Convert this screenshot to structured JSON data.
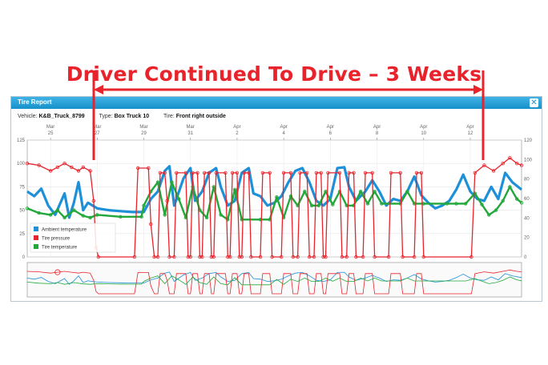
{
  "headline": "Driver Continued To Drive – 3 Weeks",
  "window": {
    "title": "Tire Report",
    "close_icon": "close-icon"
  },
  "info": {
    "vehicle_label": "Vehicle:",
    "vehicle_value": "K&B_Truck_8799",
    "type_label": "Type:",
    "type_value": "Box Truck 10",
    "tire_label": "Tire:",
    "tire_value": "Front right outside"
  },
  "colors": {
    "ambient": "#1e90d8",
    "pressure": "#e8232b",
    "tire_temp": "#22a83a",
    "headline": "#e8232b"
  },
  "chart_data": {
    "type": "line",
    "title": "",
    "xlabel": "",
    "ylabel": "",
    "x_unit": "days since Mar 24",
    "xlim": [
      0,
      21.2
    ],
    "x_ticks": [
      {
        "x": 1,
        "month": "Mar",
        "day": "25"
      },
      {
        "x": 3,
        "month": "Mar",
        "day": "27"
      },
      {
        "x": 5,
        "month": "Mar",
        "day": "29"
      },
      {
        "x": 7,
        "month": "Mar",
        "day": "31"
      },
      {
        "x": 9,
        "month": "Apr",
        "day": "2"
      },
      {
        "x": 11,
        "month": "Apr",
        "day": "4"
      },
      {
        "x": 13,
        "month": "Apr",
        "day": "6"
      },
      {
        "x": 15,
        "month": "Apr",
        "day": "8"
      },
      {
        "x": 17,
        "month": "Apr",
        "day": "10"
      },
      {
        "x": 19,
        "month": "Apr",
        "day": "12"
      }
    ],
    "y_left": {
      "range": [
        0,
        125
      ],
      "ticks": [
        "0",
        "25",
        "50",
        "75",
        "100",
        "125"
      ]
    },
    "y_right": {
      "range": [
        0,
        120
      ],
      "ticks": [
        "0",
        "20",
        "40",
        "60",
        "80",
        "100",
        "120"
      ]
    },
    "legend_position": "bottom-left",
    "grid": true,
    "annotation": {
      "text": "Driver Continued To Drive – 3 Weeks",
      "x_start": 2.75,
      "x_end": 19.4
    },
    "series": [
      {
        "name": "Ambient temperature",
        "axis": "left",
        "points": [
          [
            0,
            70
          ],
          [
            0.3,
            65
          ],
          [
            0.6,
            73
          ],
          [
            0.9,
            55
          ],
          [
            1.2,
            45
          ],
          [
            1.6,
            68
          ],
          [
            1.8,
            42
          ],
          [
            2.0,
            58
          ],
          [
            2.2,
            80
          ],
          [
            2.4,
            50
          ],
          [
            2.6,
            58
          ],
          [
            2.8,
            55
          ],
          [
            3.0,
            52
          ],
          [
            3.5,
            50
          ],
          [
            4.0,
            49
          ],
          [
            4.5,
            48
          ],
          [
            5.0,
            48
          ],
          [
            5.3,
            62
          ],
          [
            5.6,
            70
          ],
          [
            5.9,
            92
          ],
          [
            6.1,
            97
          ],
          [
            6.3,
            55
          ],
          [
            6.7,
            84
          ],
          [
            7.0,
            95
          ],
          [
            7.2,
            60
          ],
          [
            7.5,
            70
          ],
          [
            7.8,
            90
          ],
          [
            8.1,
            95
          ],
          [
            8.3,
            75
          ],
          [
            8.6,
            55
          ],
          [
            8.9,
            60
          ],
          [
            9.2,
            90
          ],
          [
            9.5,
            95
          ],
          [
            9.7,
            68
          ],
          [
            10.0,
            65
          ],
          [
            10.3,
            55
          ],
          [
            10.6,
            58
          ],
          [
            10.9,
            65
          ],
          [
            11.2,
            80
          ],
          [
            11.5,
            92
          ],
          [
            11.8,
            95
          ],
          [
            12.1,
            80
          ],
          [
            12.4,
            60
          ],
          [
            12.7,
            55
          ],
          [
            13.0,
            62
          ],
          [
            13.3,
            95
          ],
          [
            13.6,
            96
          ],
          [
            13.8,
            75
          ],
          [
            14.1,
            60
          ],
          [
            14.5,
            70
          ],
          [
            14.8,
            82
          ],
          [
            15.1,
            70
          ],
          [
            15.4,
            55
          ],
          [
            15.7,
            62
          ],
          [
            16.0,
            60
          ],
          [
            16.3,
            70
          ],
          [
            16.6,
            86
          ],
          [
            16.9,
            66
          ],
          [
            17.2,
            58
          ],
          [
            17.5,
            52
          ],
          [
            17.8,
            55
          ],
          [
            18.1,
            60
          ],
          [
            18.4,
            72
          ],
          [
            18.7,
            88
          ],
          [
            19.0,
            70
          ],
          [
            19.3,
            62
          ],
          [
            19.6,
            60
          ],
          [
            19.9,
            75
          ],
          [
            20.2,
            62
          ],
          [
            20.5,
            90
          ],
          [
            20.8,
            80
          ],
          [
            21.2,
            72
          ]
        ]
      },
      {
        "name": "Tire pressure",
        "axis": "left",
        "points": [
          [
            0,
            100
          ],
          [
            0.5,
            98
          ],
          [
            1.0,
            92
          ],
          [
            1.3,
            96
          ],
          [
            1.6,
            100
          ],
          [
            1.9,
            96
          ],
          [
            2.2,
            92
          ],
          [
            2.4,
            96
          ],
          [
            2.7,
            92
          ],
          [
            2.85,
            60
          ],
          [
            2.95,
            10
          ],
          [
            3.05,
            0
          ],
          [
            4.6,
            0
          ],
          [
            4.75,
            95
          ],
          [
            5.2,
            95
          ],
          [
            5.3,
            35
          ],
          [
            5.45,
            0
          ],
          [
            5.6,
            0
          ],
          [
            5.7,
            90
          ],
          [
            5.9,
            90
          ],
          [
            6.0,
            60
          ],
          [
            6.1,
            0
          ],
          [
            6.3,
            0
          ],
          [
            6.4,
            90
          ],
          [
            6.8,
            90
          ],
          [
            6.9,
            0
          ],
          [
            7.0,
            0
          ],
          [
            7.1,
            90
          ],
          [
            7.3,
            90
          ],
          [
            7.4,
            0
          ],
          [
            7.5,
            0
          ],
          [
            7.6,
            90
          ],
          [
            7.8,
            90
          ],
          [
            7.9,
            0
          ],
          [
            8.0,
            0
          ],
          [
            8.1,
            90
          ],
          [
            8.5,
            90
          ],
          [
            8.6,
            0
          ],
          [
            8.7,
            0
          ],
          [
            8.8,
            90
          ],
          [
            9.0,
            90
          ],
          [
            9.1,
            0
          ],
          [
            9.2,
            0
          ],
          [
            9.3,
            90
          ],
          [
            9.5,
            90
          ],
          [
            9.6,
            0
          ],
          [
            10.0,
            0
          ],
          [
            10.1,
            90
          ],
          [
            10.4,
            90
          ],
          [
            10.5,
            0
          ],
          [
            10.9,
            0
          ],
          [
            11.0,
            90
          ],
          [
            11.3,
            90
          ],
          [
            11.4,
            0
          ],
          [
            11.6,
            0
          ],
          [
            11.7,
            90
          ],
          [
            12.0,
            90
          ],
          [
            12.1,
            0
          ],
          [
            12.3,
            0
          ],
          [
            12.4,
            90
          ],
          [
            12.6,
            90
          ],
          [
            12.7,
            0
          ],
          [
            12.8,
            0
          ],
          [
            12.9,
            90
          ],
          [
            13.4,
            90
          ],
          [
            13.5,
            0
          ],
          [
            13.7,
            0
          ],
          [
            13.8,
            90
          ],
          [
            14.0,
            90
          ],
          [
            14.1,
            0
          ],
          [
            14.4,
            0
          ],
          [
            14.5,
            90
          ],
          [
            14.8,
            90
          ],
          [
            14.9,
            0
          ],
          [
            15.5,
            0
          ],
          [
            15.6,
            90
          ],
          [
            16.0,
            90
          ],
          [
            16.1,
            0
          ],
          [
            16.6,
            0
          ],
          [
            16.7,
            90
          ],
          [
            16.9,
            90
          ],
          [
            17.0,
            0
          ],
          [
            19.05,
            0
          ],
          [
            19.2,
            90
          ],
          [
            19.6,
            98
          ],
          [
            20.0,
            92
          ],
          [
            20.4,
            100
          ],
          [
            20.7,
            106
          ],
          [
            21.0,
            100
          ],
          [
            21.2,
            98
          ]
        ]
      },
      {
        "name": "Tire temperature",
        "axis": "left",
        "points": [
          [
            0,
            52
          ],
          [
            0.5,
            47
          ],
          [
            1.0,
            45
          ],
          [
            1.3,
            50
          ],
          [
            1.6,
            42
          ],
          [
            2.0,
            50
          ],
          [
            2.4,
            44
          ],
          [
            2.7,
            42
          ],
          [
            3.0,
            45
          ],
          [
            4.0,
            43
          ],
          [
            4.9,
            43
          ],
          [
            5.0,
            55
          ],
          [
            5.3,
            70
          ],
          [
            5.6,
            80
          ],
          [
            5.9,
            45
          ],
          [
            6.2,
            80
          ],
          [
            6.5,
            62
          ],
          [
            6.8,
            42
          ],
          [
            7.1,
            75
          ],
          [
            7.4,
            50
          ],
          [
            7.7,
            42
          ],
          [
            8.0,
            75
          ],
          [
            8.3,
            45
          ],
          [
            8.6,
            40
          ],
          [
            8.9,
            72
          ],
          [
            9.2,
            40
          ],
          [
            10.0,
            40
          ],
          [
            10.4,
            40
          ],
          [
            10.7,
            64
          ],
          [
            11.0,
            42
          ],
          [
            11.3,
            65
          ],
          [
            11.6,
            55
          ],
          [
            11.9,
            70
          ],
          [
            12.2,
            55
          ],
          [
            12.5,
            55
          ],
          [
            12.8,
            70
          ],
          [
            13.1,
            56
          ],
          [
            13.4,
            70
          ],
          [
            13.7,
            55
          ],
          [
            14.0,
            55
          ],
          [
            14.3,
            70
          ],
          [
            14.6,
            57
          ],
          [
            14.9,
            70
          ],
          [
            15.2,
            57
          ],
          [
            16.0,
            57
          ],
          [
            16.3,
            70
          ],
          [
            16.6,
            57
          ],
          [
            17.0,
            57
          ],
          [
            18.0,
            57
          ],
          [
            18.4,
            57
          ],
          [
            18.8,
            57
          ],
          [
            19.2,
            68
          ],
          [
            19.5,
            56
          ],
          [
            19.8,
            45
          ],
          [
            20.1,
            50
          ],
          [
            20.4,
            60
          ],
          [
            20.7,
            75
          ],
          [
            21.0,
            62
          ],
          [
            21.2,
            58
          ]
        ]
      }
    ]
  }
}
